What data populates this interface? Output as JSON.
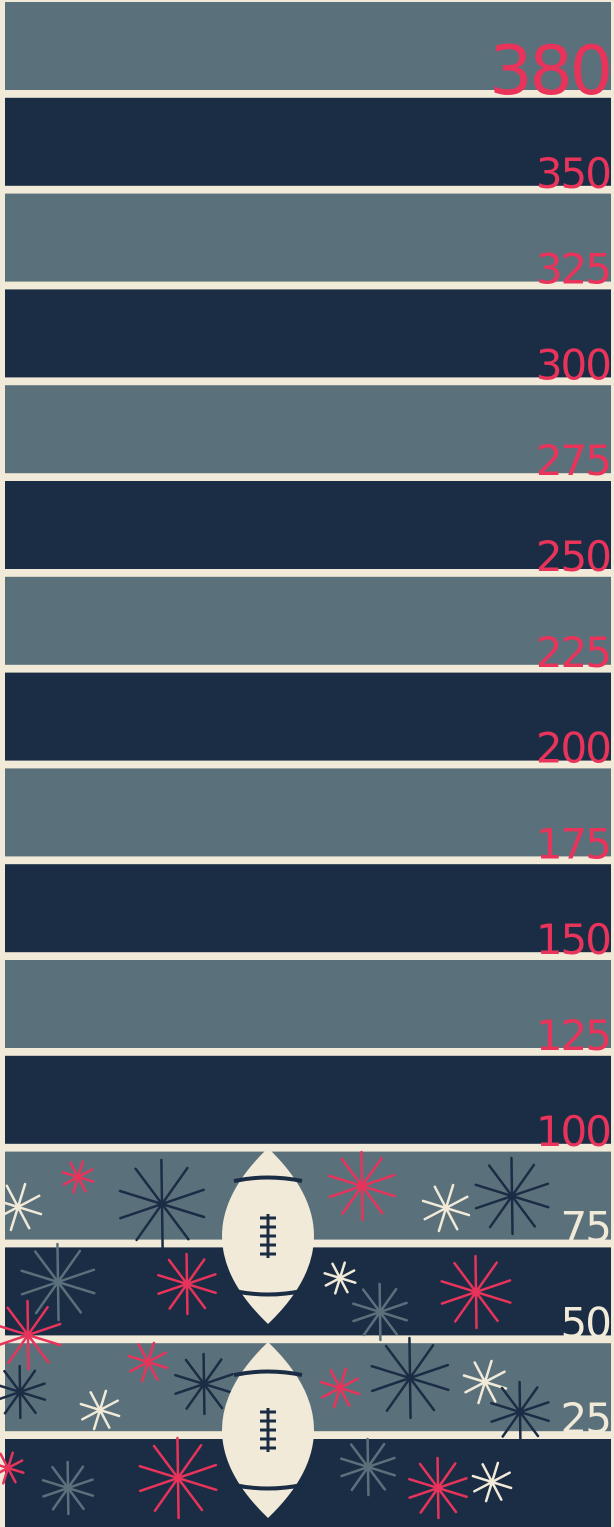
{
  "height_chart": {
    "labels": [
      "380",
      "350",
      "325",
      "300",
      "275",
      "250",
      "225",
      "200",
      "175",
      "150",
      "125",
      "100",
      "75",
      "50",
      "25"
    ]
  }
}
